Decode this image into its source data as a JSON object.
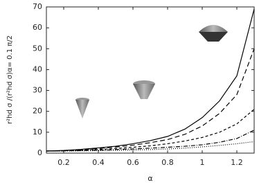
{
  "chart_data": {
    "type": "line",
    "xlabel": "α",
    "ylabel": "r²hd σ /(r²hd σ)α= 0.1 π/2",
    "x": [
      0.1,
      0.2,
      0.3,
      0.4,
      0.5,
      0.6,
      0.7,
      0.8,
      0.9,
      1.0,
      1.1,
      1.2,
      1.3
    ],
    "series": [
      {
        "color": "#000000",
        "dash": "none",
        "values": [
          1,
          1.3,
          1.8,
          2.5,
          3.3,
          4.5,
          6,
          8,
          11.5,
          17,
          25,
          37,
          69
        ]
      },
      {
        "color": "#000000",
        "dash": "7,4",
        "values": [
          1,
          1.2,
          1.6,
          2.2,
          2.9,
          3.8,
          5,
          6.5,
          9,
          13,
          19,
          28,
          50
        ]
      },
      {
        "color": "#000000",
        "dash": "4,3",
        "values": [
          1,
          1.1,
          1.4,
          1.8,
          2.2,
          2.8,
          3.5,
          4.5,
          5.8,
          7.5,
          10,
          14,
          21
        ]
      },
      {
        "color": "#000000",
        "dash": "6,2,1,2",
        "values": [
          1,
          1.05,
          1.2,
          1.4,
          1.7,
          2,
          2.4,
          2.8,
          3.3,
          4,
          5.2,
          7,
          11
        ]
      },
      {
        "color": "#000000",
        "dash": "1,2",
        "values": [
          1,
          1.02,
          1.1,
          1.2,
          1.35,
          1.5,
          1.7,
          2,
          2.4,
          3,
          3.7,
          4.5,
          5.5
        ]
      }
    ],
    "xlim": [
      0.1,
      1.3
    ],
    "xticks": [
      {
        "value": 0.2,
        "label": "0.2"
      },
      {
        "value": 0.4,
        "label": "0.4"
      },
      {
        "value": 0.6,
        "label": "0.6"
      },
      {
        "value": 0.8,
        "label": "0.8"
      },
      1,
      1.2
    ],
    "ylim": [
      0,
      70
    ],
    "yticks": [
      0,
      10,
      20,
      30,
      40,
      50,
      60,
      70
    ]
  }
}
